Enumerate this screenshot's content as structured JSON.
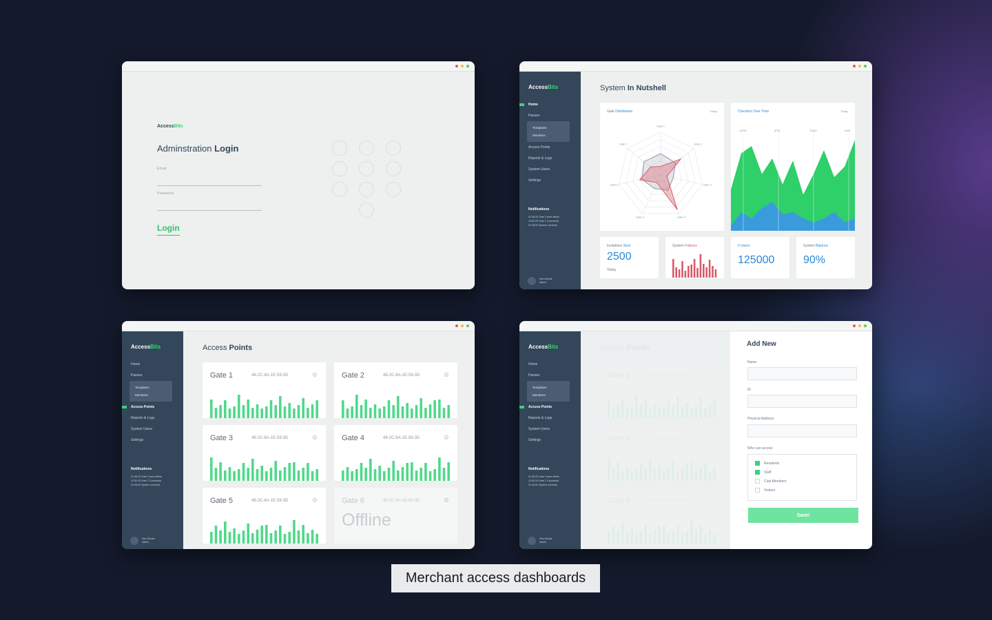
{
  "colors": {
    "accent": "#3ad37a",
    "blue": "#2a88d6",
    "red": "#d9596b",
    "sidebar": "#34465a"
  },
  "window_dots": [
    "#e25b57",
    "#f3be3b",
    "#5fca4e"
  ],
  "brand": {
    "part1": "Access",
    "part2": "Bits"
  },
  "login": {
    "title_prefix": "Adminstration ",
    "title_bold": "Login",
    "email_label": "Email",
    "password_label": "Password",
    "button": "Login"
  },
  "nav": {
    "items": [
      "Home",
      "Passes",
      "Access Points",
      "Reports & Logs",
      "System Users",
      "Settings"
    ],
    "sub_items": [
      "Templates",
      "Members"
    ]
  },
  "notifications": {
    "title": "Notifications",
    "lines": [
      "01:36:25 Gate 2 went offline",
      "12:52:25 Gate 2 Connected",
      "01:26:00 System overload"
    ]
  },
  "user": {
    "name": "Hero Brodie",
    "role": "Admin"
  },
  "dashboard": {
    "title_prefix": "System ",
    "title_bold": "In Nutshell",
    "radar": {
      "title": "Gate ",
      "title_accent": "Distribution",
      "period": "Today",
      "labels": [
        "Gate 1",
        "Gate 2",
        "Gate 3",
        "Gate 4",
        "Gate 5",
        "Gate 6",
        "Gate 7"
      ],
      "values_a": [
        0.5,
        0.45,
        0.3,
        0.4,
        0.35,
        0.45,
        0.5
      ],
      "values_b": [
        0.2,
        0.6,
        0.15,
        0.9,
        0.2,
        0.5,
        0.3
      ]
    },
    "area": {
      "title": "Checkins ",
      "title_accent": "Over Time",
      "period": "Today",
      "ticks": [
        "12PM",
        "6PM",
        "12AM",
        "6AM"
      ],
      "green": [
        0.4,
        0.75,
        0.82,
        0.55,
        0.7,
        0.45,
        0.68,
        0.35,
        0.55,
        0.78,
        0.52,
        0.62,
        0.88
      ],
      "blue": [
        0.05,
        0.18,
        0.12,
        0.22,
        0.28,
        0.16,
        0.18,
        0.12,
        0.08,
        0.12,
        0.18,
        0.08,
        0.12
      ]
    },
    "invitations": {
      "label": "Invitations ",
      "accent": "Sent",
      "value": "2500",
      "sub": "Today"
    },
    "failures": {
      "label": "System ",
      "accent": "Failures",
      "values": [
        0.8,
        0.45,
        0.35,
        0.7,
        0.3,
        0.5,
        0.55,
        0.8,
        0.4,
        1,
        0.6,
        0.45,
        0.75,
        0.5,
        0.35
      ]
    },
    "users": {
      "label": "# ",
      "accent": "Users",
      "value": "125000"
    },
    "balance": {
      "label": "System ",
      "accent": "Balance",
      "value": "90%"
    }
  },
  "access_points": {
    "title_prefix": "Access ",
    "title_bold": "Points",
    "gates": [
      {
        "name": "Gate 1",
        "mac": "48-2C-6A-1E-59-3D"
      },
      {
        "name": "Gate 2",
        "mac": "48-2C-6A-1E-59-3D"
      },
      {
        "name": "Gate 3",
        "mac": "48-2C-6A-1E-59-3D"
      },
      {
        "name": "Gate 4",
        "mac": "48-2C-6A-1E-59-3D"
      },
      {
        "name": "Gate 5",
        "mac": "48-2C-6A-1E-59-3D"
      },
      {
        "name": "Gate 6",
        "mac": "48-2C-6A-1E-59-3D",
        "status": "Offline"
      }
    ],
    "bar_pattern": [
      0.8,
      0.45,
      0.55,
      0.75,
      0.4,
      0.5,
      1,
      0.55,
      0.8,
      0.45,
      0.6,
      0.4,
      0.5,
      0.75,
      0.55,
      0.95,
      0.5,
      0.65,
      0.4,
      0.55,
      0.85,
      0.45,
      0.6,
      0.75
    ]
  },
  "add_new": {
    "title": "Add New",
    "name_label": "Name",
    "id_label": "ID",
    "address_label": "Physical Address",
    "access_label": "Who can access",
    "options": [
      {
        "label": "Residents",
        "checked": true
      },
      {
        "label": "Staff",
        "checked": true
      },
      {
        "label": "Club Members",
        "checked": false
      },
      {
        "label": "Visitors",
        "checked": false
      }
    ],
    "save": "Save!"
  },
  "caption": "Merchant access dashboards"
}
